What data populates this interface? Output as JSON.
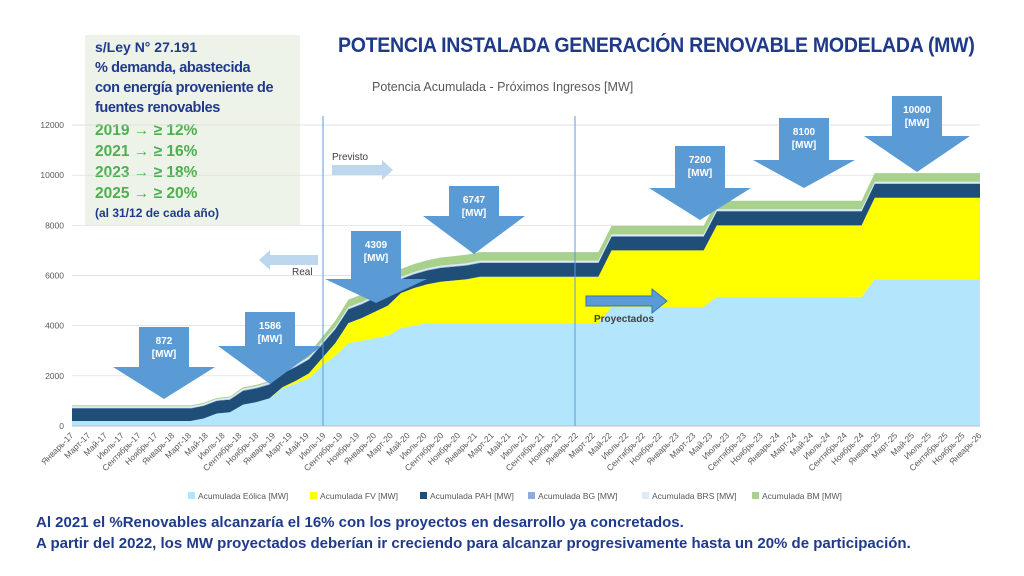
{
  "header": {
    "title": "POTENCIA INSTALADA GENERACIÓN RENOVABLE MODELADA (MW)"
  },
  "law_box": {
    "line1": "s/Ley N° 27.191",
    "line2": "% demanda, abastecida",
    "line3": "con energía proveniente de",
    "line4": "fuentes renovables",
    "targets": [
      "2019 → ≥ 12%",
      "2021 → ≥ 16%",
      "2023 → ≥ 18%",
      "2025 → ≥ 20%"
    ],
    "note": "(al 31/12 de cada año)"
  },
  "footer": {
    "line1": "Al 2021 el %Renovables alcanzaría el 16% con los proyectos en desarrollo ya concretados.",
    "line2": "A partir del 2022, los MW proyectados deberían ir creciendo para alcanzar progresivamente hasta un 20% de participación."
  },
  "chart_data": {
    "type": "area",
    "stacked": true,
    "title": "Potencia Acumulada - Próximos Ingresos [MW]",
    "ylim": [
      0,
      12000
    ],
    "yticks": [
      "0",
      "2000",
      "4000",
      "6000",
      "8000",
      "10000",
      "12000"
    ],
    "xticks": [
      "Январь-17",
      "Март-17",
      "Май-17",
      "Июль-17",
      "Сентябрь-17",
      "Ноябрь-17",
      "Январь-18",
      "Март-18",
      "Май-18",
      "Июль-18",
      "Сентябрь-18",
      "Ноябрь-18",
      "Январь-19",
      "Март-19",
      "Май-19",
      "Июль-19",
      "Сентябрь-19",
      "Ноябрь-19",
      "Январь-20",
      "Март-20",
      "Май-20",
      "Июль-20",
      "Сентябрь-20",
      "Ноябрь-20",
      "Январь-21",
      "Март-21",
      "Май-21",
      "Июль-21",
      "Сентябрь-21",
      "Ноябрь-21",
      "Январь-22",
      "Март-22",
      "Май-22",
      "Июль-22",
      "Сентябрь-22",
      "Ноябрь-22",
      "Январь-23",
      "Март-23",
      "Май-23",
      "Июль-23",
      "Сентябрь-23",
      "Ноябрь-23",
      "Январь-24",
      "Март-24",
      "Май-24",
      "Июль-24",
      "Сентябрь-24",
      "Ноябрь-24",
      "Январь-25",
      "Март-25",
      "Май-25",
      "Июль-25",
      "Сентябрь-25",
      "Ноябрь-25",
      "Январь-26"
    ],
    "series": [
      {
        "name": "Acumulada Eólica [MW]",
        "color": "#b3e5fc",
        "values": [
          200,
          200,
          200,
          200,
          200,
          200,
          200,
          200,
          200,
          200,
          300,
          500,
          550,
          850,
          950,
          1100,
          1500,
          1700,
          1900,
          2400,
          2800,
          3300,
          3400,
          3500,
          3600,
          3900,
          4000,
          4100,
          4100,
          4100,
          4100,
          4100,
          4100,
          4100,
          4100,
          4100,
          4100,
          4100,
          4100,
          4100,
          4100,
          4750,
          4750,
          4750,
          4750,
          4750,
          4750,
          4750,
          4750,
          5150,
          5150,
          5150,
          5150,
          5150,
          5150,
          5150,
          5150,
          5150,
          5150,
          5150,
          5150,
          5850,
          5850,
          5850,
          5850,
          5850,
          5850,
          5850,
          5850,
          5850
        ]
      },
      {
        "name": "Acumulada FV [MW]",
        "color": "#ffff00",
        "values": [
          0,
          0,
          0,
          0,
          0,
          0,
          0,
          0,
          0,
          0,
          0,
          0,
          0,
          0,
          0,
          0,
          50,
          100,
          200,
          300,
          500,
          800,
          900,
          1050,
          1200,
          1400,
          1500,
          1550,
          1650,
          1700,
          1750,
          1850,
          1850,
          1850,
          1850,
          1850,
          1850,
          1850,
          1850,
          1850,
          1850,
          2250,
          2250,
          2250,
          2250,
          2250,
          2250,
          2250,
          2250,
          2850,
          2850,
          2850,
          2850,
          2850,
          2850,
          2850,
          2850,
          2850,
          2850,
          2850,
          2850,
          3250,
          3250,
          3250,
          3250,
          3250,
          3250,
          3250,
          3250,
          3250
        ]
      },
      {
        "name": "Acumulada PAH [MW]",
        "color": "#1f4e79",
        "values": [
          500,
          500,
          500,
          500,
          500,
          500,
          500,
          500,
          500,
          500,
          500,
          500,
          500,
          550,
          550,
          550,
          550,
          550,
          550,
          550,
          550,
          550,
          550,
          550,
          550,
          550,
          550,
          550,
          550,
          550,
          550,
          550,
          550,
          550,
          550,
          550,
          550,
          550,
          550,
          550,
          550,
          550,
          550,
          550,
          550,
          550,
          550,
          550,
          550,
          550,
          550,
          550,
          550,
          550,
          550,
          550,
          550,
          550,
          550,
          550,
          550,
          550,
          550,
          550,
          550,
          550,
          550,
          550,
          550,
          550
        ]
      },
      {
        "name": "Acumulada BG [MW]",
        "color": "#8faadc",
        "values": [
          20,
          20,
          20,
          20,
          20,
          20,
          20,
          20,
          20,
          20,
          20,
          20,
          20,
          30,
          30,
          30,
          30,
          30,
          30,
          30,
          30,
          30,
          30,
          30,
          30,
          30,
          30,
          30,
          30,
          30,
          30,
          30,
          30,
          30,
          30,
          30,
          30,
          30,
          30,
          30,
          30,
          30,
          30,
          30,
          30,
          30,
          30,
          30,
          30,
          30,
          30,
          30,
          30,
          30,
          30,
          30,
          30,
          30,
          30,
          30,
          30,
          30,
          30,
          30,
          30,
          30,
          30,
          30,
          30,
          30
        ]
      },
      {
        "name": "Acumulada BRS [MW]",
        "color": "#ddebf7",
        "values": [
          60,
          60,
          60,
          60,
          60,
          60,
          60,
          60,
          60,
          60,
          60,
          60,
          60,
          60,
          60,
          60,
          60,
          60,
          60,
          60,
          60,
          60,
          60,
          60,
          60,
          60,
          60,
          60,
          60,
          60,
          60,
          60,
          60,
          60,
          60,
          60,
          60,
          60,
          60,
          60,
          60,
          60,
          60,
          60,
          60,
          60,
          60,
          60,
          60,
          60,
          60,
          60,
          60,
          60,
          60,
          60,
          60,
          60,
          60,
          60,
          60,
          60,
          60,
          60,
          60,
          60,
          60,
          60,
          60,
          60
        ]
      },
      {
        "name": "Acumulada BM [MW]",
        "color": "#a9d18e",
        "values": [
          40,
          40,
          40,
          40,
          40,
          40,
          40,
          40,
          40,
          40,
          40,
          40,
          40,
          50,
          50,
          50,
          100,
          100,
          150,
          200,
          250,
          300,
          300,
          300,
          320,
          320,
          320,
          320,
          330,
          330,
          340,
          340,
          340,
          340,
          340,
          340,
          340,
          340,
          340,
          340,
          340,
          340,
          340,
          340,
          340,
          340,
          340,
          340,
          340,
          340,
          340,
          340,
          340,
          340,
          340,
          340,
          340,
          340,
          340,
          340,
          340,
          340,
          340,
          340,
          340,
          340,
          340,
          340,
          340,
          340
        ]
      }
    ],
    "annotations": {
      "arrows": [
        {
          "label": "872\n[MW]"
        },
        {
          "label": "1586\n[MW]"
        },
        {
          "label": "4309\n[MW]"
        },
        {
          "label": "6747\n[MW]"
        },
        {
          "label": "7200\n[MW]"
        },
        {
          "label": "8100\n[MW]"
        },
        {
          "label": "10000\n[MW]"
        }
      ],
      "real_label": "Real",
      "previsto_label": "Previsto",
      "proyectados_label": "Proyectados"
    },
    "legend_position": "bottom"
  }
}
